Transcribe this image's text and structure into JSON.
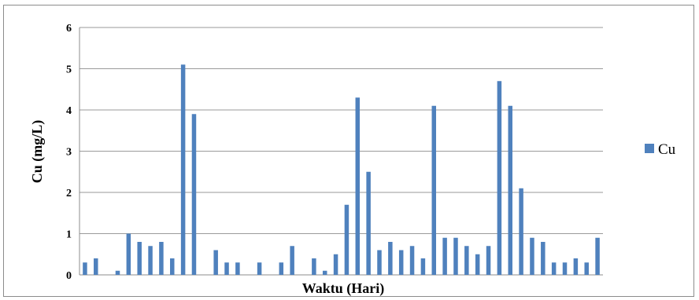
{
  "chart_data": {
    "type": "bar",
    "title": "",
    "xlabel": "Waktu (Hari)",
    "ylabel": "Cu (mg/L)",
    "ylim": [
      0,
      6
    ],
    "yticks": [
      0,
      1,
      2,
      3,
      4,
      5,
      6
    ],
    "grid": true,
    "legend_position": "right",
    "bar_color": "#4F81BD",
    "series": [
      {
        "name": "Cu",
        "values": [
          0.3,
          0.4,
          0,
          0.1,
          1.0,
          0.8,
          0.7,
          0.8,
          0.4,
          5.1,
          3.9,
          0,
          0.6,
          0.3,
          0.3,
          0,
          0.3,
          0,
          0.3,
          0.7,
          0,
          0.4,
          0.1,
          0.5,
          1.7,
          4.3,
          2.5,
          0.6,
          0.8,
          0.6,
          0.7,
          0.4,
          4.1,
          0.9,
          0.9,
          0.7,
          0.5,
          0.7,
          4.7,
          4.1,
          2.1,
          0.9,
          0.8,
          0.3,
          0.3,
          0.4,
          0.3,
          0.9
        ]
      }
    ]
  }
}
